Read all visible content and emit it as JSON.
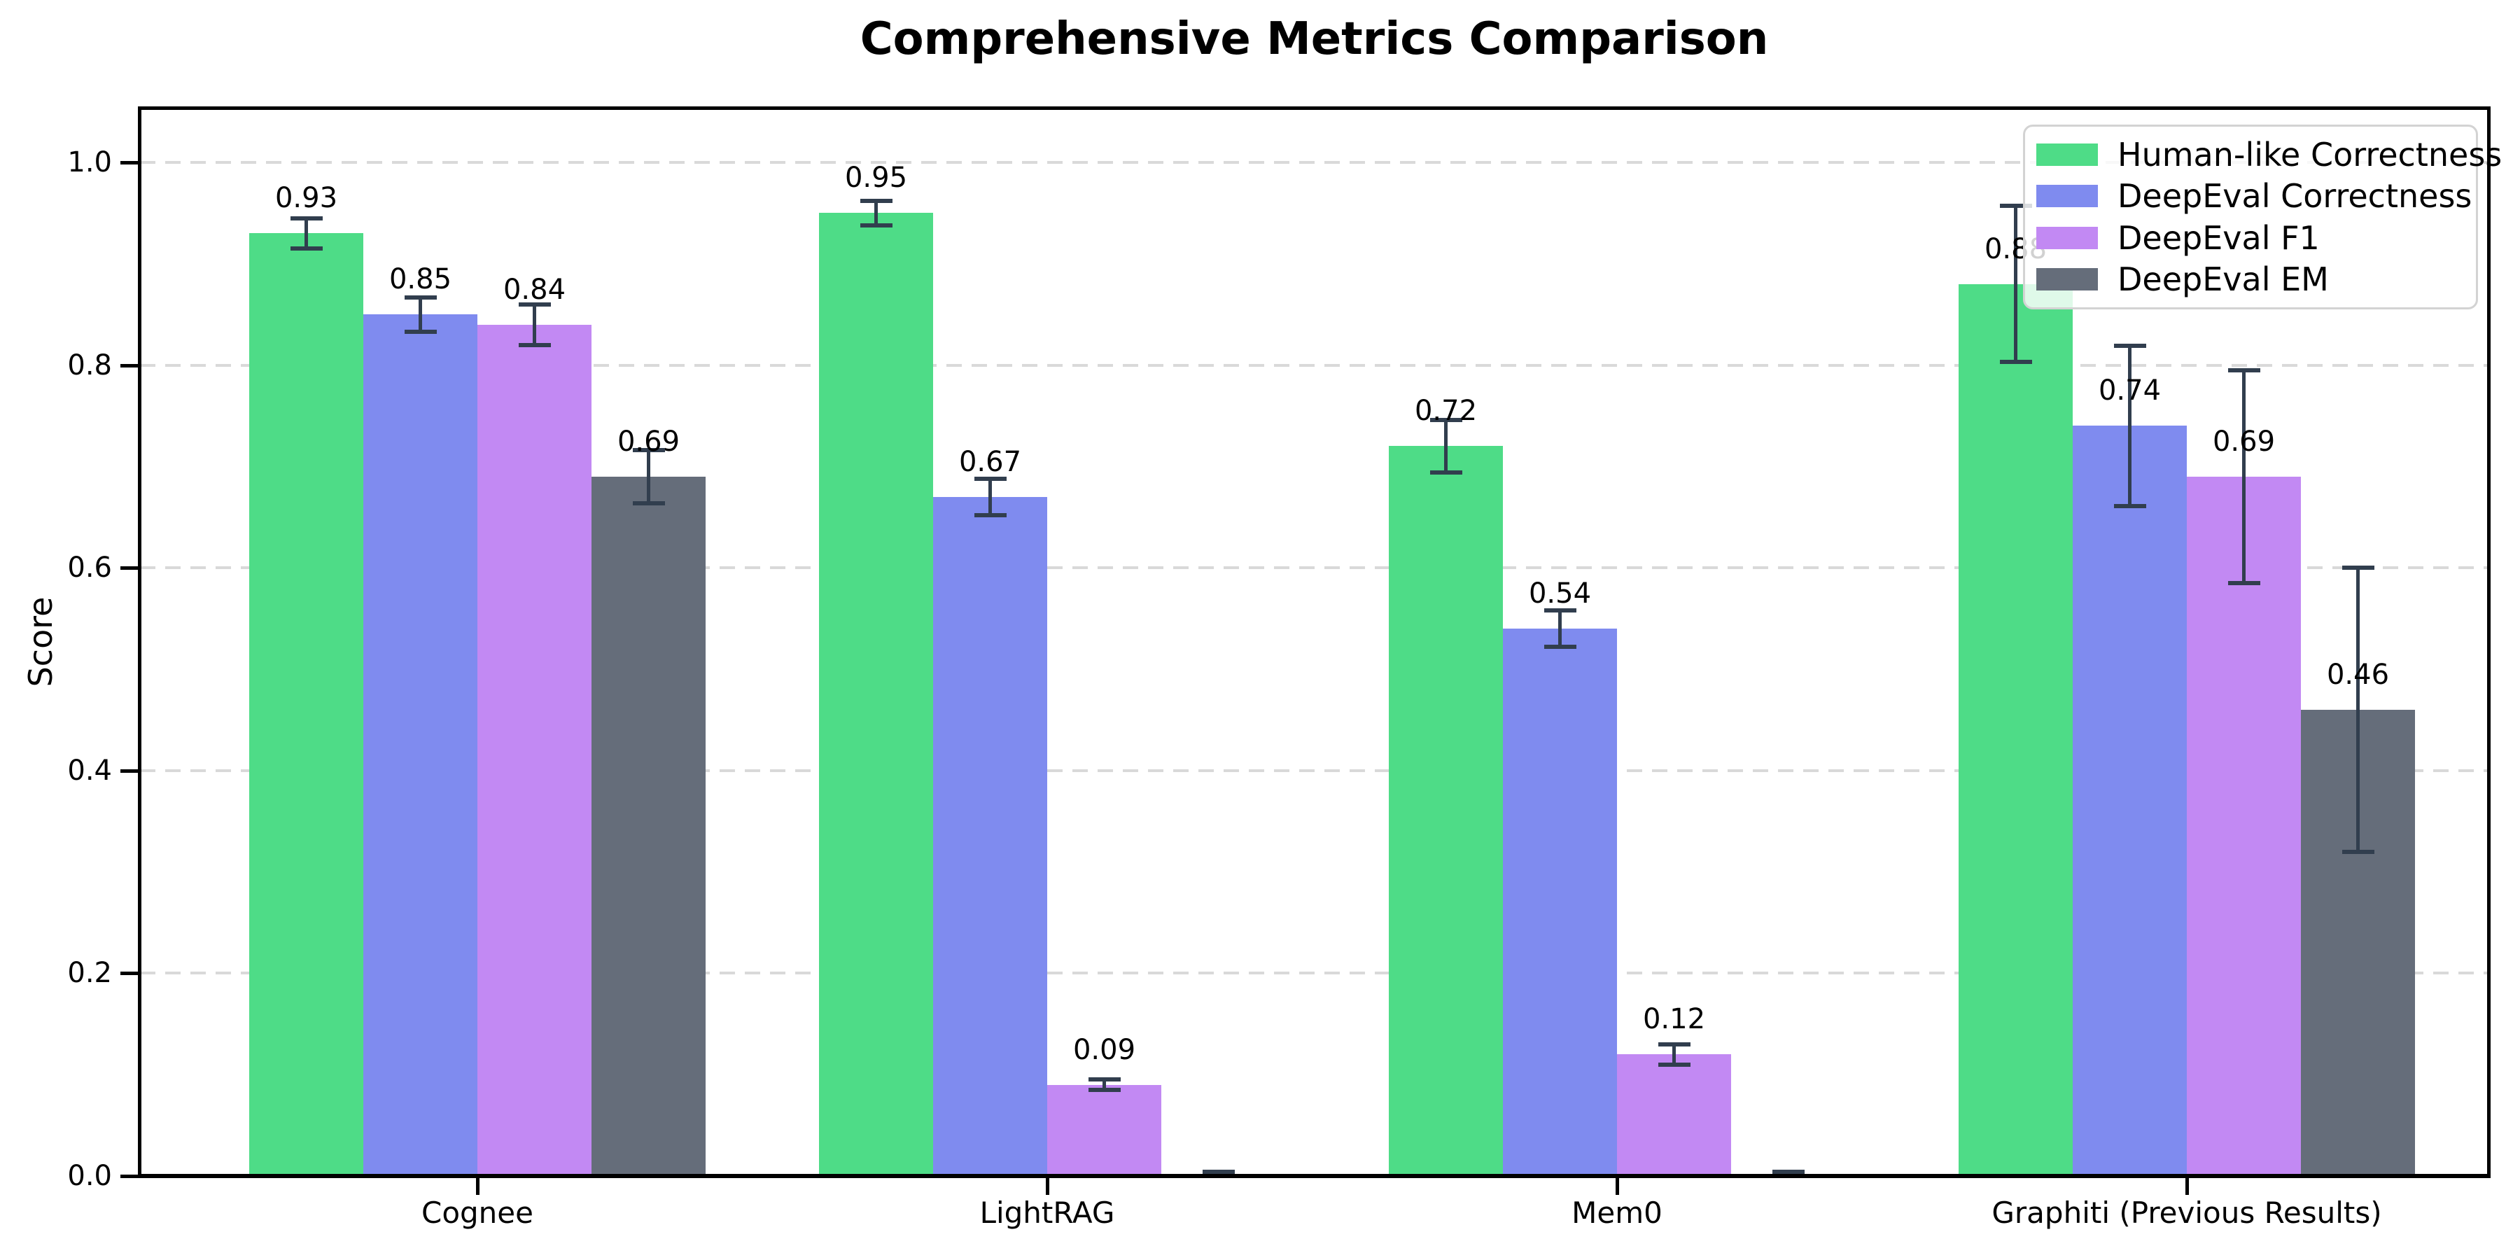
{
  "chart_data": {
    "type": "bar",
    "title": "Comprehensive Metrics Comparison",
    "ylabel": "Score",
    "xlabel": "",
    "categories": [
      "Cognee",
      "LightRAG",
      "Mem0",
      "Graphiti (Previous Results)"
    ],
    "series": [
      {
        "name": "Human-like Correctness",
        "color": "#4edc87",
        "values": [
          0.93,
          0.95,
          0.72,
          0.88
        ],
        "errors": [
          0.015,
          0.012,
          0.026,
          0.077
        ],
        "labels": [
          "0.93",
          "0.95",
          "0.72",
          "0.88"
        ]
      },
      {
        "name": "DeepEval Correctness",
        "color": "#7f8bef",
        "values": [
          0.85,
          0.67,
          0.54,
          0.74
        ],
        "errors": [
          0.017,
          0.018,
          0.018,
          0.079
        ],
        "labels": [
          "0.85",
          "0.67",
          "0.54",
          "0.74"
        ]
      },
      {
        "name": "DeepEval F1",
        "color": "#c289f3",
        "values": [
          0.84,
          0.09,
          0.12,
          0.69
        ],
        "errors": [
          0.02,
          0.005,
          0.01,
          0.105
        ],
        "labels": [
          "0.84",
          "0.09",
          "0.12",
          "0.69"
        ]
      },
      {
        "name": "DeepEval EM",
        "color": "#656d7a",
        "values": [
          0.69,
          0.0,
          0.0,
          0.46
        ],
        "errors": [
          0.026,
          0.004,
          0.004,
          0.14
        ],
        "labels": [
          "0.69",
          "",
          "",
          "0.46"
        ]
      }
    ],
    "yticks": [
      "0.0",
      "0.2",
      "0.4",
      "0.6",
      "0.8",
      "1.0"
    ],
    "ytick_values": [
      0.0,
      0.2,
      0.4,
      0.6,
      0.8,
      1.0
    ],
    "ylim": [
      0,
      1.053
    ],
    "grid": "horizontal dashed",
    "legend_position": "upper right",
    "error_bar_color": "#313e4e"
  }
}
